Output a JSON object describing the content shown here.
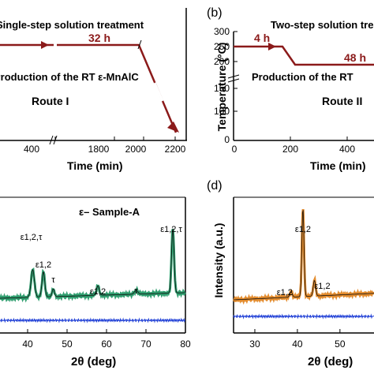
{
  "chart_data": [
    {
      "type": "line",
      "panel": "a",
      "title": "Single-step solution treatment",
      "xlabel": "Time  (min)",
      "ylabel": "",
      "x_ticks": [
        "400",
        "1800",
        "2000",
        "2200"
      ],
      "x_axis_break": true,
      "series": [
        {
          "x": [
            0,
            800,
            1200,
            2000,
            2100
          ],
          "y": [
            200,
            200,
            200,
            200,
            0
          ],
          "color": "#8b1a1a"
        }
      ],
      "annotations": {
        "duration": "32 h",
        "process": "Production of the RT ε-MnAlC",
        "route": "Route I"
      }
    },
    {
      "type": "line",
      "panel": "b",
      "title": "Two-step solution treatment",
      "xlabel": "Time  (min)",
      "ylabel": "Temperature (°C)",
      "ylim": [
        0,
        300
      ],
      "y_ticks": [
        "300",
        "250",
        "200",
        "150",
        "100",
        "0"
      ],
      "x_ticks": [
        "0",
        "200",
        "400"
      ],
      "y_axis_break": true,
      "x_axis_break": true,
      "series": [
        {
          "x": [
            0,
            240,
            250,
            474
          ],
          "y": [
            200,
            200,
            100,
            100
          ],
          "color": "#8b1a1a"
        }
      ],
      "annotations": {
        "duration1": "4 h",
        "duration2": "48 h",
        "process": "Production of the RT",
        "route": "Route II"
      }
    },
    {
      "type": "line",
      "panel": "c",
      "xlabel": "2θ (deg)",
      "ylabel": "",
      "x_ticks": [
        "40",
        "50",
        "60",
        "70",
        "80"
      ],
      "xlim": [
        33,
        80
      ],
      "legend": "ε– Sample-A",
      "peak_labels": [
        {
          "x": 41.3,
          "label": "ε1,2,τ"
        },
        {
          "x": 44.0,
          "label": "ε1,2"
        },
        {
          "x": 46.5,
          "label": "τ"
        },
        {
          "x": 57.8,
          "label": "ε1,2"
        },
        {
          "x": 67.5,
          "label": "τ"
        },
        {
          "x": 76.8,
          "label": "ε1,2,τ"
        }
      ]
    },
    {
      "type": "line",
      "panel": "d",
      "xlabel": "2θ (deg)",
      "ylabel": "Intensity (a.u.)",
      "x_ticks": [
        "30",
        "40",
        "50"
      ],
      "xlim": [
        25,
        58
      ],
      "peak_labels": [
        {
          "x": 38.5,
          "label": "ε1,2"
        },
        {
          "x": 41.3,
          "label": "ε1,2"
        },
        {
          "x": 44.0,
          "label": "ε1,2"
        }
      ]
    }
  ],
  "panel_labels": {
    "b": "(b)",
    "d": "(d)"
  }
}
